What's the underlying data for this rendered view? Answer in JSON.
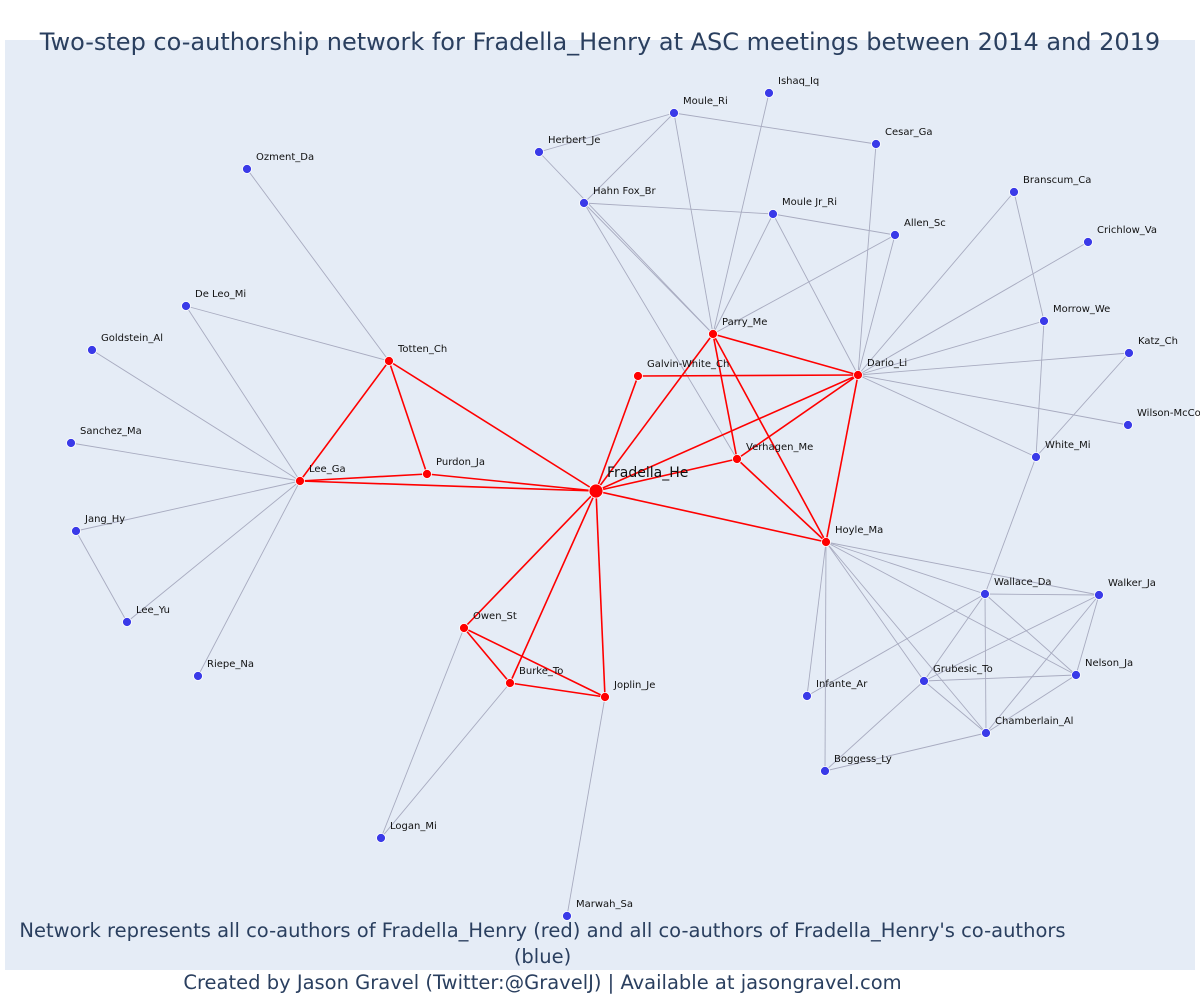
{
  "title": "Two-step co-authorship network for Fradella_Henry at ASC meetings between 2014 and 2019",
  "caption_line1": "Network represents all co-authors of Fradella_Henry (red) and all co-authors of Fradella_Henry's co-authors (blue)",
  "caption_line2": "Created by Jason Gravel (Twitter:@GravelJ) | Available at jasongravel.com",
  "colors": {
    "background": "#e5ecf6",
    "first_step": "#ff0000",
    "second_step": "#3a3ae8",
    "grey_edge": "#a8abc0",
    "text": "#2a3f5f"
  },
  "center_node": "Fradella_He",
  "nodes": [
    {
      "id": "Fradella_He",
      "group": "center"
    },
    {
      "id": "Ishaq_Iq",
      "group": "second"
    },
    {
      "id": "Moule_Ri",
      "group": "second"
    },
    {
      "id": "Herbert_Je",
      "group": "second"
    },
    {
      "id": "Cesar_Ga",
      "group": "second"
    },
    {
      "id": "Ozment_Da",
      "group": "second"
    },
    {
      "id": "Hahn Fox_Br",
      "group": "second"
    },
    {
      "id": "Moule Jr_Ri",
      "group": "second"
    },
    {
      "id": "Branscum_Ca",
      "group": "second"
    },
    {
      "id": "Allen_Sc",
      "group": "second"
    },
    {
      "id": "Crichlow_Va",
      "group": "second"
    },
    {
      "id": "De Leo_Mi",
      "group": "second"
    },
    {
      "id": "Goldstein_Al",
      "group": "second"
    },
    {
      "id": "Parry_Me",
      "group": "first"
    },
    {
      "id": "Morrow_We",
      "group": "second"
    },
    {
      "id": "Totten_Ch",
      "group": "first"
    },
    {
      "id": "Katz_Ch",
      "group": "second"
    },
    {
      "id": "Galvin-White_Ch",
      "group": "first"
    },
    {
      "id": "Dario_Li",
      "group": "first"
    },
    {
      "id": "Wilson-McCo",
      "group": "second"
    },
    {
      "id": "Sanchez_Ma",
      "group": "second"
    },
    {
      "id": "White_Mi",
      "group": "second"
    },
    {
      "id": "Verhagen_Me",
      "group": "first"
    },
    {
      "id": "Purdon_Ja",
      "group": "first"
    },
    {
      "id": "Lee_Ga",
      "group": "first"
    },
    {
      "id": "Hoyle_Ma",
      "group": "first"
    },
    {
      "id": "Jang_Hy",
      "group": "second"
    },
    {
      "id": "Wallace_Da",
      "group": "second"
    },
    {
      "id": "Walker_Ja",
      "group": "second"
    },
    {
      "id": "Lee_Yu",
      "group": "second"
    },
    {
      "id": "Owen_St",
      "group": "first"
    },
    {
      "id": "Nelson_Ja",
      "group": "second"
    },
    {
      "id": "Riepe_Na",
      "group": "second"
    },
    {
      "id": "Grubesic_To",
      "group": "second"
    },
    {
      "id": "Burke_To",
      "group": "first"
    },
    {
      "id": "Joplin_Je",
      "group": "first"
    },
    {
      "id": "Infante_Ar",
      "group": "second"
    },
    {
      "id": "Chamberlain_Al",
      "group": "second"
    },
    {
      "id": "Boggess_Ly",
      "group": "second"
    },
    {
      "id": "Logan_Mi",
      "group": "second"
    },
    {
      "id": "Marwah_Sa",
      "group": "second"
    }
  ],
  "edges": [
    [
      "Fradella_He",
      "Totten_Ch",
      "red"
    ],
    [
      "Fradella_He",
      "Lee_Ga",
      "red"
    ],
    [
      "Fradella_He",
      "Purdon_Ja",
      "red"
    ],
    [
      "Fradella_He",
      "Galvin-White_Ch",
      "red"
    ],
    [
      "Fradella_He",
      "Parry_Me",
      "red"
    ],
    [
      "Fradella_He",
      "Dario_Li",
      "red"
    ],
    [
      "Fradella_He",
      "Verhagen_Me",
      "red"
    ],
    [
      "Fradella_He",
      "Hoyle_Ma",
      "red"
    ],
    [
      "Fradella_He",
      "Owen_St",
      "red"
    ],
    [
      "Fradella_He",
      "Burke_To",
      "red"
    ],
    [
      "Fradella_He",
      "Joplin_Je",
      "red"
    ],
    [
      "Totten_Ch",
      "Lee_Ga",
      "red"
    ],
    [
      "Totten_Ch",
      "Purdon_Ja",
      "red"
    ],
    [
      "Lee_Ga",
      "Purdon_Ja",
      "red"
    ],
    [
      "Galvin-White_Ch",
      "Dario_Li",
      "red"
    ],
    [
      "Parry_Me",
      "Dario_Li",
      "red"
    ],
    [
      "Parry_Me",
      "Verhagen_Me",
      "red"
    ],
    [
      "Parry_Me",
      "Hoyle_Ma",
      "red"
    ],
    [
      "Verhagen_Me",
      "Dario_Li",
      "red"
    ],
    [
      "Verhagen_Me",
      "Hoyle_Ma",
      "red"
    ],
    [
      "Dario_Li",
      "Hoyle_Ma",
      "red"
    ],
    [
      "Owen_St",
      "Burke_To",
      "red"
    ],
    [
      "Owen_St",
      "Joplin_Je",
      "red"
    ],
    [
      "Burke_To",
      "Joplin_Je",
      "red"
    ],
    [
      "Ozment_Da",
      "Totten_Ch",
      "grey"
    ],
    [
      "De Leo_Mi",
      "Totten_Ch",
      "grey"
    ],
    [
      "De Leo_Mi",
      "Lee_Ga",
      "grey"
    ],
    [
      "Goldstein_Al",
      "Lee_Ga",
      "grey"
    ],
    [
      "Sanchez_Ma",
      "Lee_Ga",
      "grey"
    ],
    [
      "Jang_Hy",
      "Lee_Ga",
      "grey"
    ],
    [
      "Jang_Hy",
      "Lee_Yu",
      "grey"
    ],
    [
      "Lee_Yu",
      "Lee_Ga",
      "grey"
    ],
    [
      "Riepe_Na",
      "Lee_Ga",
      "grey"
    ],
    [
      "Moule_Ri",
      "Herbert_Je",
      "grey"
    ],
    [
      "Moule_Ri",
      "Hahn Fox_Br",
      "grey"
    ],
    [
      "Moule_Ri",
      "Cesar_Ga",
      "grey"
    ],
    [
      "Moule_Ri",
      "Parry_Me",
      "grey"
    ],
    [
      "Herbert_Je",
      "Parry_Me",
      "grey"
    ],
    [
      "Hahn Fox_Br",
      "Parry_Me",
      "grey"
    ],
    [
      "Hahn Fox_Br",
      "Verhagen_Me",
      "grey"
    ],
    [
      "Hahn Fox_Br",
      "Moule Jr_Ri",
      "grey"
    ],
    [
      "Ishaq_Iq",
      "Parry_Me",
      "grey"
    ],
    [
      "Cesar_Ga",
      "Dario_Li",
      "grey"
    ],
    [
      "Moule Jr_Ri",
      "Parry_Me",
      "grey"
    ],
    [
      "Moule Jr_Ri",
      "Allen_Sc",
      "grey"
    ],
    [
      "Moule Jr_Ri",
      "Dario_Li",
      "grey"
    ],
    [
      "Allen_Sc",
      "Parry_Me",
      "grey"
    ],
    [
      "Allen_Sc",
      "Dario_Li",
      "grey"
    ],
    [
      "Branscum_Ca",
      "Dario_Li",
      "grey"
    ],
    [
      "Branscum_Ca",
      "Morrow_We",
      "grey"
    ],
    [
      "Crichlow_Va",
      "Dario_Li",
      "grey"
    ],
    [
      "Morrow_We",
      "Dario_Li",
      "grey"
    ],
    [
      "Morrow_We",
      "White_Mi",
      "grey"
    ],
    [
      "Katz_Ch",
      "Dario_Li",
      "grey"
    ],
    [
      "Katz_Ch",
      "White_Mi",
      "grey"
    ],
    [
      "Wilson-McCo",
      "Dario_Li",
      "grey"
    ],
    [
      "White_Mi",
      "Dario_Li",
      "grey"
    ],
    [
      "White_Mi",
      "Wallace_Da",
      "grey"
    ],
    [
      "Hoyle_Ma",
      "Wallace_Da",
      "grey"
    ],
    [
      "Hoyle_Ma",
      "Walker_Ja",
      "grey"
    ],
    [
      "Hoyle_Ma",
      "Nelson_Ja",
      "grey"
    ],
    [
      "Hoyle_Ma",
      "Grubesic_To",
      "grey"
    ],
    [
      "Hoyle_Ma",
      "Chamberlain_Al",
      "grey"
    ],
    [
      "Hoyle_Ma",
      "Infante_Ar",
      "grey"
    ],
    [
      "Hoyle_Ma",
      "Boggess_Ly",
      "grey"
    ],
    [
      "Wallace_Da",
      "Walker_Ja",
      "grey"
    ],
    [
      "Wallace_Da",
      "Nelson_Ja",
      "grey"
    ],
    [
      "Wallace_Da",
      "Grubesic_To",
      "grey"
    ],
    [
      "Wallace_Da",
      "Chamberlain_Al",
      "grey"
    ],
    [
      "Wallace_Da",
      "Infante_Ar",
      "grey"
    ],
    [
      "Walker_Ja",
      "Nelson_Ja",
      "grey"
    ],
    [
      "Walker_Ja",
      "Grubesic_To",
      "grey"
    ],
    [
      "Walker_Ja",
      "Chamberlain_Al",
      "grey"
    ],
    [
      "Nelson_Ja",
      "Grubesic_To",
      "grey"
    ],
    [
      "Nelson_Ja",
      "Chamberlain_Al",
      "grey"
    ],
    [
      "Grubesic_To",
      "Chamberlain_Al",
      "grey"
    ],
    [
      "Grubesic_To",
      "Boggess_Ly",
      "grey"
    ],
    [
      "Boggess_Ly",
      "Chamberlain_Al",
      "grey"
    ],
    [
      "Logan_Mi",
      "Owen_St",
      "grey"
    ],
    [
      "Logan_Mi",
      "Burke_To",
      "grey"
    ],
    [
      "Marwah_Sa",
      "Joplin_Je",
      "grey"
    ]
  ]
}
